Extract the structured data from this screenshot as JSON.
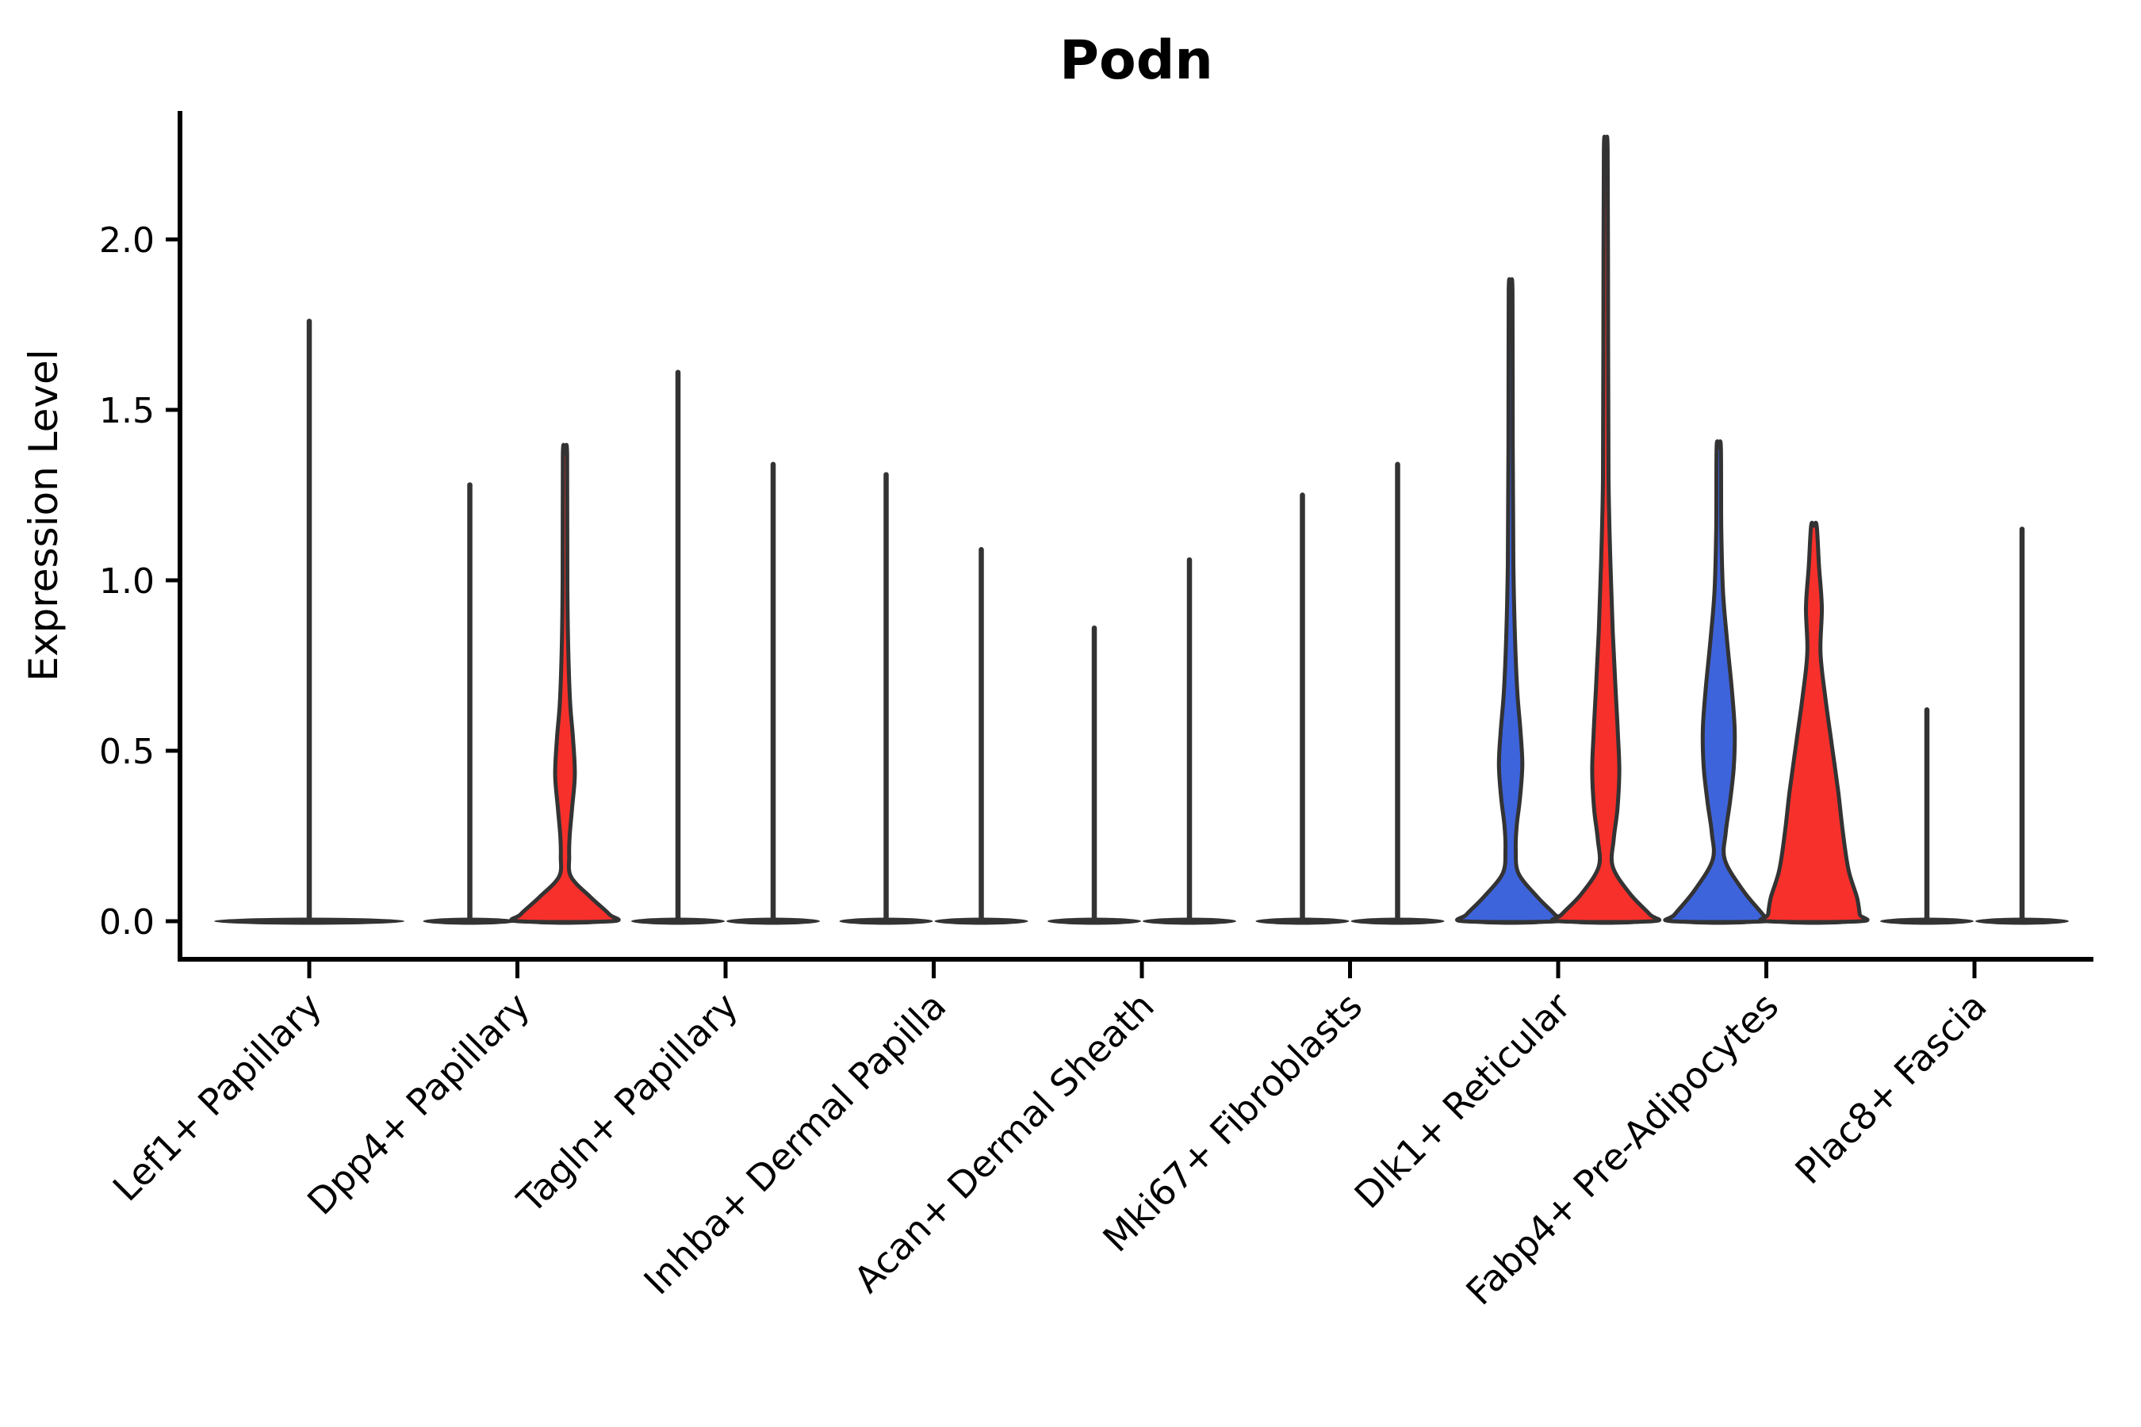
{
  "chart_data": {
    "type": "violin",
    "title": "Podn",
    "ylabel": "Expression Level",
    "xlabel": "",
    "grid": false,
    "legend": "none",
    "yticks": [
      {
        "label": "0.0",
        "value": 0.0
      },
      {
        "label": "0.5",
        "value": 0.5
      },
      {
        "label": "1.0",
        "value": 1.0
      },
      {
        "label": "1.5",
        "value": 1.5
      },
      {
        "label": "2.0",
        "value": 2.0
      }
    ],
    "ylim": [
      -0.08,
      2.38
    ],
    "xticklabel_rotation": 45,
    "colors": {
      "condition1": "#3E64DC",
      "condition2": "#F8302B",
      "violin_outline": "#333333",
      "axis": "#000000"
    },
    "categories": [
      "Lef1+ Papillary",
      "Dpp4+ Papillary",
      "Tagln+ Papillary",
      "Inhba+ Dermal Papilla",
      "Acan+ Dermal Sheath",
      "Mki67+ Fibroblasts",
      "Dlk1+ Reticular",
      "Fabp4+ Pre-Adipocytes",
      "Plac8+ Fascia"
    ],
    "groups": [
      {
        "category": "Lef1+ Papillary",
        "violins": [
          {
            "position": "single",
            "fill": "none",
            "shape": "spike",
            "max": 1.76
          }
        ]
      },
      {
        "category": "Dpp4+ Papillary",
        "violins": [
          {
            "position": "left",
            "fill": "condition1",
            "shape": "spike",
            "max": 1.28
          },
          {
            "position": "right",
            "fill": "condition2",
            "shape": "body",
            "max": 1.37,
            "profile": [
              [
                1.37,
                0.045
              ],
              [
                1.0,
                0.05
              ],
              [
                0.8,
                0.07
              ],
              [
                0.64,
                0.11
              ],
              [
                0.54,
                0.17
              ],
              [
                0.43,
                0.21
              ],
              [
                0.33,
                0.15
              ],
              [
                0.25,
                0.1
              ],
              [
                0.19,
                0.09
              ],
              [
                0.13,
                0.13
              ],
              [
                0.07,
                0.55
              ],
              [
                0.02,
                0.95
              ],
              [
                0.0,
                1.0
              ]
            ]
          }
        ]
      },
      {
        "category": "Tagln+ Papillary",
        "violins": [
          {
            "position": "left",
            "fill": "condition1",
            "shape": "spike",
            "max": 1.61
          },
          {
            "position": "right",
            "fill": "condition2",
            "shape": "spike",
            "max": 1.34
          }
        ]
      },
      {
        "category": "Inhba+ Dermal Papilla",
        "violins": [
          {
            "position": "left",
            "fill": "condition1",
            "shape": "spike",
            "max": 1.31
          },
          {
            "position": "right",
            "fill": "condition2",
            "shape": "spike",
            "max": 1.09
          }
        ]
      },
      {
        "category": "Acan+ Dermal Sheath",
        "violins": [
          {
            "position": "left",
            "fill": "condition1",
            "shape": "spike",
            "max": 0.86
          },
          {
            "position": "right",
            "fill": "condition2",
            "shape": "spike",
            "max": 1.06
          }
        ]
      },
      {
        "category": "Mki67+ Fibroblasts",
        "violins": [
          {
            "position": "left",
            "fill": "condition1",
            "shape": "spike",
            "max": 1.25
          },
          {
            "position": "right",
            "fill": "condition2",
            "shape": "spike",
            "max": 1.34
          }
        ]
      },
      {
        "category": "Dlk1+ Reticular",
        "violins": [
          {
            "position": "left",
            "fill": "condition1",
            "shape": "body",
            "max": 1.85,
            "profile": [
              [
                1.85,
                0.04
              ],
              [
                1.4,
                0.045
              ],
              [
                1.05,
                0.06
              ],
              [
                0.85,
                0.09
              ],
              [
                0.68,
                0.14
              ],
              [
                0.56,
                0.21
              ],
              [
                0.46,
                0.25
              ],
              [
                0.36,
                0.2
              ],
              [
                0.28,
                0.13
              ],
              [
                0.21,
                0.11
              ],
              [
                0.14,
                0.17
              ],
              [
                0.07,
                0.58
              ],
              [
                0.02,
                0.94
              ],
              [
                0.0,
                1.0
              ]
            ]
          },
          {
            "position": "right",
            "fill": "condition2",
            "shape": "body",
            "max": 2.26,
            "profile": [
              [
                2.26,
                0.04
              ],
              [
                1.7,
                0.05
              ],
              [
                1.3,
                0.06
              ],
              [
                1.05,
                0.1
              ],
              [
                0.85,
                0.15
              ],
              [
                0.68,
                0.21
              ],
              [
                0.55,
                0.26
              ],
              [
                0.44,
                0.29
              ],
              [
                0.33,
                0.25
              ],
              [
                0.24,
                0.17
              ],
              [
                0.16,
                0.15
              ],
              [
                0.08,
                0.52
              ],
              [
                0.02,
                0.94
              ],
              [
                0.0,
                1.0
              ]
            ]
          }
        ]
      },
      {
        "category": "Fabp4+ Pre-Adipocytes",
        "violins": [
          {
            "position": "left",
            "fill": "condition1",
            "shape": "body",
            "max": 1.39,
            "profile": [
              [
                1.39,
                0.045
              ],
              [
                1.15,
                0.055
              ],
              [
                0.97,
                0.09
              ],
              [
                0.82,
                0.18
              ],
              [
                0.68,
                0.28
              ],
              [
                0.56,
                0.34
              ],
              [
                0.45,
                0.32
              ],
              [
                0.35,
                0.24
              ],
              [
                0.26,
                0.15
              ],
              [
                0.18,
                0.13
              ],
              [
                0.09,
                0.52
              ],
              [
                0.02,
                0.94
              ],
              [
                0.0,
                1.0
              ]
            ]
          },
          {
            "position": "right",
            "fill": "condition2",
            "shape": "body",
            "max": 1.16,
            "profile": [
              [
                1.16,
                0.06
              ],
              [
                1.04,
                0.11
              ],
              [
                0.92,
                0.17
              ],
              [
                0.79,
                0.14
              ],
              [
                0.66,
                0.24
              ],
              [
                0.52,
                0.38
              ],
              [
                0.38,
                0.52
              ],
              [
                0.26,
                0.62
              ],
              [
                0.15,
                0.74
              ],
              [
                0.07,
                0.92
              ],
              [
                0.02,
                0.98
              ],
              [
                0.0,
                1.0
              ]
            ]
          }
        ]
      },
      {
        "category": "Plac8+ Fascia",
        "violins": [
          {
            "position": "left",
            "fill": "condition1",
            "shape": "spike",
            "max": 0.62
          },
          {
            "position": "right",
            "fill": "condition2",
            "shape": "spike",
            "max": 1.15
          }
        ]
      }
    ]
  }
}
